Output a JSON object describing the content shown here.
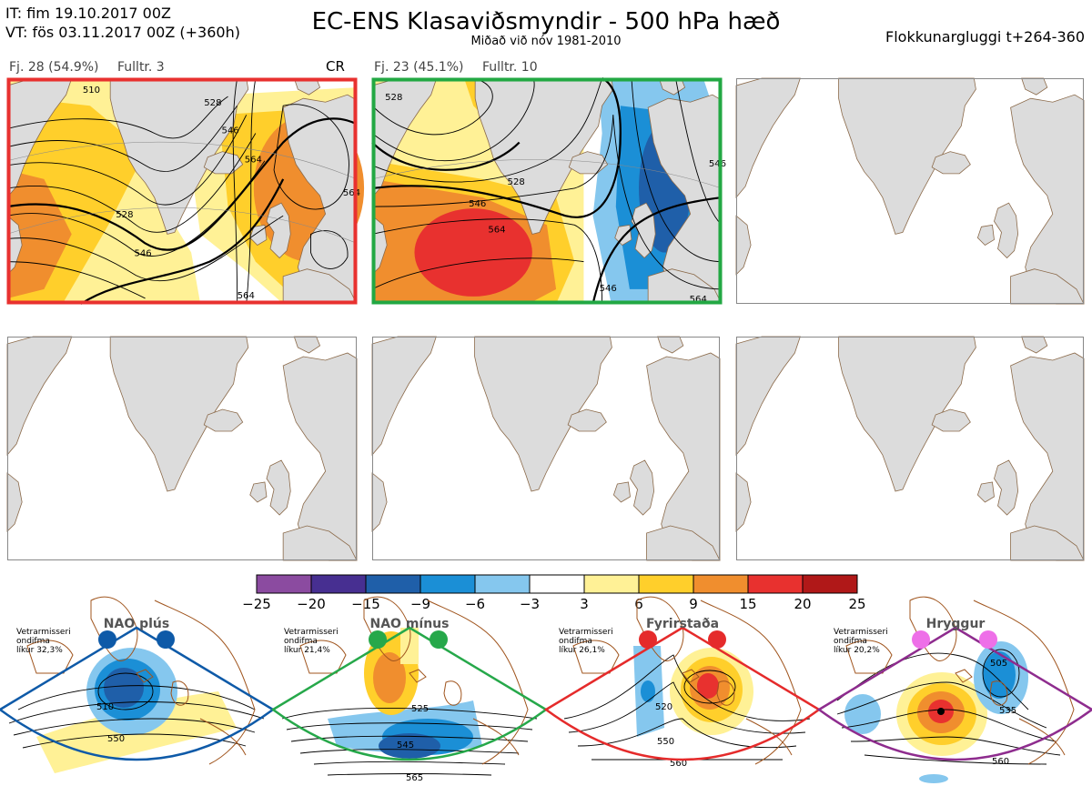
{
  "header": {
    "it_line": "IT: fim 19.10.2017 00Z",
    "vt_line": "VT: fös 03.11.2017 00Z  (+360h)",
    "title": "EC-ENS Klasaviðsmyndir - 500 hPa hæð",
    "subtitle": "Miðað við nóv 1981-2010",
    "window": "Flokkunargluggi t+264-360"
  },
  "clusters": [
    {
      "count_label": "Fj. 28 (54.9%)",
      "rep_label": "Fulltr. 3",
      "regime_tag": "CR",
      "border_color": "#e8312f",
      "contour_labels": [
        "510",
        "528",
        "528",
        "546",
        "546",
        "564",
        "564",
        "564"
      ]
    },
    {
      "count_label": "Fj. 23 (45.1%)",
      "rep_label": "Fulltr. 10",
      "regime_tag": "",
      "border_color": "#22a843",
      "contour_labels": [
        "528",
        "528",
        "546",
        "564",
        "546",
        "564",
        "546"
      ]
    }
  ],
  "colors": {
    "land": "#dcdcdc",
    "coast": "#8b6a4a",
    "map_border": "#888888"
  },
  "chart_data": {
    "type": "heatmap",
    "title": "EC-ENS Klasaviðsmyndir - 500 hPa hæð",
    "colorbar": {
      "ticks": [
        "−25",
        "−20",
        "−15",
        "−9",
        "−6",
        "−3",
        "3",
        "6",
        "9",
        "15",
        "20",
        "25"
      ],
      "colors": [
        "#8b4ba0",
        "#472f91",
        "#1f5fa9",
        "#1b8fd6",
        "#85c7ee",
        "#ffffff",
        "#fff196",
        "#ffcf2b",
        "#f08e2e",
        "#e8312f",
        "#b01818"
      ]
    }
  },
  "regimes": [
    {
      "title": "NAO plús",
      "info": [
        "Vetrarmisseri",
        "ondifma",
        "líkur 32,3%"
      ],
      "color": "#0e5aa8",
      "labels": [
        "510",
        "550"
      ]
    },
    {
      "title": "NAO mínus",
      "info": [
        "Vetrarmisseri",
        "ondifma",
        "líkur 21,4%"
      ],
      "color": "#26a84a",
      "labels": [
        "525",
        "545",
        "565"
      ]
    },
    {
      "title": "Fyrirstaða",
      "info": [
        "Vetrarmisseri",
        "ondifma",
        "líkur 26,1%"
      ],
      "color": "#e52b2b",
      "labels": [
        "520",
        "550",
        "560"
      ]
    },
    {
      "title": "Hryggur",
      "info": [
        "Vetrarmisseri",
        "ondifma",
        "líkur 20,2%"
      ],
      "color": "#ee6fe8",
      "labels": [
        "505",
        "535",
        "560"
      ]
    }
  ]
}
